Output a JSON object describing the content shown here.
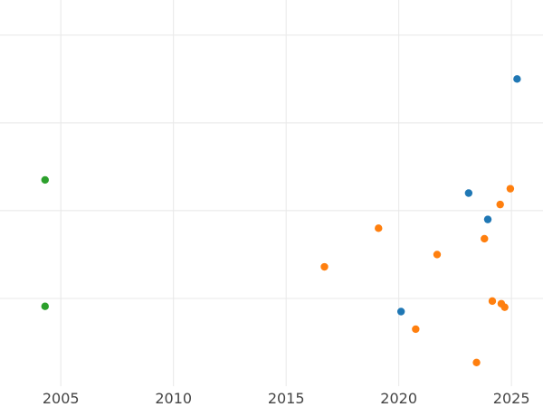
{
  "chart_data": {
    "type": "scatter",
    "title": "",
    "xlabel": "",
    "ylabel": "",
    "xlim": [
      2002.3,
      2026.4
    ],
    "ylim": [
      0,
      4.4
    ],
    "x_ticks": [
      2005,
      2010,
      2015,
      2020,
      2025
    ],
    "x_tick_labels": [
      "2005",
      "2010",
      "2015",
      "2020",
      "2025"
    ],
    "y_grid": [
      1,
      2,
      3,
      4
    ],
    "y_tick_labels": [],
    "grid": true,
    "legend": "none",
    "series": [
      {
        "color": "#1f77b4",
        "points": [
          {
            "x": 2025.25,
            "y": 3.5
          },
          {
            "x": 2023.1,
            "y": 2.2
          },
          {
            "x": 2023.95,
            "y": 1.9
          },
          {
            "x": 2020.1,
            "y": 0.85
          }
        ]
      },
      {
        "color": "#ff7f0e",
        "points": [
          {
            "x": 2024.95,
            "y": 2.25
          },
          {
            "x": 2024.5,
            "y": 2.07
          },
          {
            "x": 2019.1,
            "y": 1.8
          },
          {
            "x": 2023.8,
            "y": 1.68
          },
          {
            "x": 2021.7,
            "y": 1.5
          },
          {
            "x": 2016.7,
            "y": 1.36
          },
          {
            "x": 2024.15,
            "y": 0.97
          },
          {
            "x": 2024.55,
            "y": 0.94
          },
          {
            "x": 2024.7,
            "y": 0.9
          },
          {
            "x": 2020.75,
            "y": 0.65
          },
          {
            "x": 2023.45,
            "y": 0.27
          }
        ]
      },
      {
        "color": "#2ca02c",
        "points": [
          {
            "x": 2004.3,
            "y": 2.35
          },
          {
            "x": 2004.3,
            "y": 0.91
          }
        ]
      }
    ]
  }
}
